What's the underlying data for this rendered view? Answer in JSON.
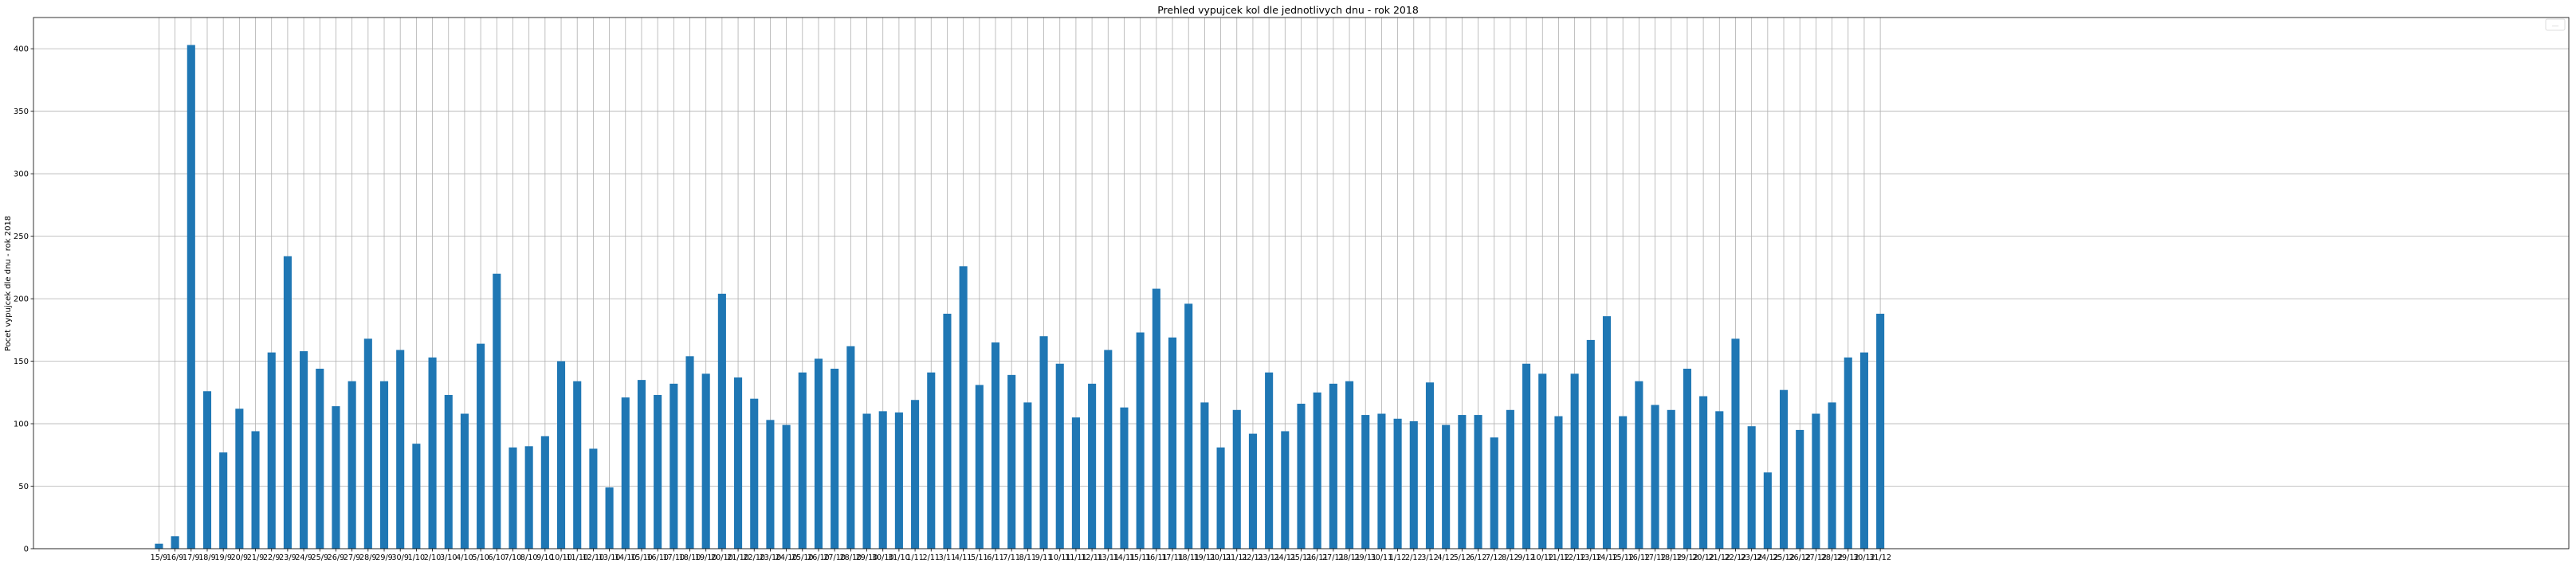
{
  "chart_data": {
    "type": "bar",
    "title": "Prehled vypujcek kol dle jednotlivych dnu - rok 2018",
    "xlabel": "",
    "ylabel": "Pocet vypujcek dle dnu - rok 2018",
    "ylim": [
      0,
      425
    ],
    "yticks": [
      0,
      50,
      100,
      150,
      200,
      250,
      300,
      350,
      400
    ],
    "grid": true,
    "bar_color": "#1f77b4",
    "categories": [
      "15/9",
      "16/9",
      "17/9",
      "18/9",
      "19/9",
      "20/9",
      "21/9",
      "22/9",
      "23/9",
      "24/9",
      "25/9",
      "26/9",
      "27/9",
      "28/9",
      "29/9",
      "30/9",
      "1/10",
      "2/10",
      "3/10",
      "4/10",
      "5/10",
      "6/10",
      "7/10",
      "8/10",
      "9/10",
      "10/10",
      "11/10",
      "12/10",
      "13/10",
      "14/10",
      "15/10",
      "16/10",
      "17/10",
      "18/10",
      "19/10",
      "20/10",
      "21/10",
      "22/10",
      "23/10",
      "24/10",
      "25/10",
      "26/10",
      "27/10",
      "28/10",
      "29/10",
      "30/10",
      "31/10",
      "1/11",
      "2/11",
      "3/11",
      "4/11",
      "5/11",
      "6/11",
      "7/11",
      "8/11",
      "9/11",
      "10/11",
      "11/11",
      "12/11",
      "13/11",
      "14/11",
      "15/11",
      "16/11",
      "17/11",
      "18/11",
      "19/11",
      "20/11",
      "21/11",
      "22/11",
      "23/11",
      "24/11",
      "25/11",
      "26/11",
      "27/11",
      "28/11",
      "29/11",
      "30/11",
      "1/12",
      "2/12",
      "3/12",
      "4/12",
      "5/12",
      "6/12",
      "7/12",
      "8/12",
      "9/12",
      "10/12",
      "11/12",
      "12/12",
      "13/12",
      "14/12",
      "15/12",
      "16/12",
      "17/12",
      "18/12",
      "19/12",
      "20/12",
      "21/12",
      "22/12",
      "23/12",
      "24/12",
      "25/12",
      "26/12",
      "27/12",
      "28/12",
      "29/12",
      "30/12",
      "31/12"
    ],
    "values": [
      4,
      10,
      403,
      126,
      77,
      112,
      94,
      157,
      234,
      158,
      144,
      114,
      134,
      168,
      134,
      159,
      84,
      153,
      123,
      108,
      164,
      220,
      81,
      82,
      90,
      150,
      134,
      80,
      49,
      121,
      135,
      123,
      132,
      154,
      140,
      204,
      137,
      120,
      103,
      99,
      141,
      152,
      144,
      162,
      108,
      110,
      109,
      119,
      141,
      188,
      226,
      131,
      165,
      139,
      117,
      170,
      148,
      105,
      132,
      159,
      113,
      173,
      208,
      169,
      196,
      117,
      81,
      111,
      92,
      141,
      94,
      116,
      125,
      132,
      134,
      107,
      108,
      104,
      102,
      133,
      99,
      107,
      107,
      89,
      111,
      148,
      140,
      106,
      140,
      167,
      186,
      106,
      134,
      115,
      111,
      144,
      122,
      110,
      168,
      98,
      61,
      127,
      95,
      108,
      117,
      153,
      157,
      188
    ]
  },
  "legend_label": "—"
}
